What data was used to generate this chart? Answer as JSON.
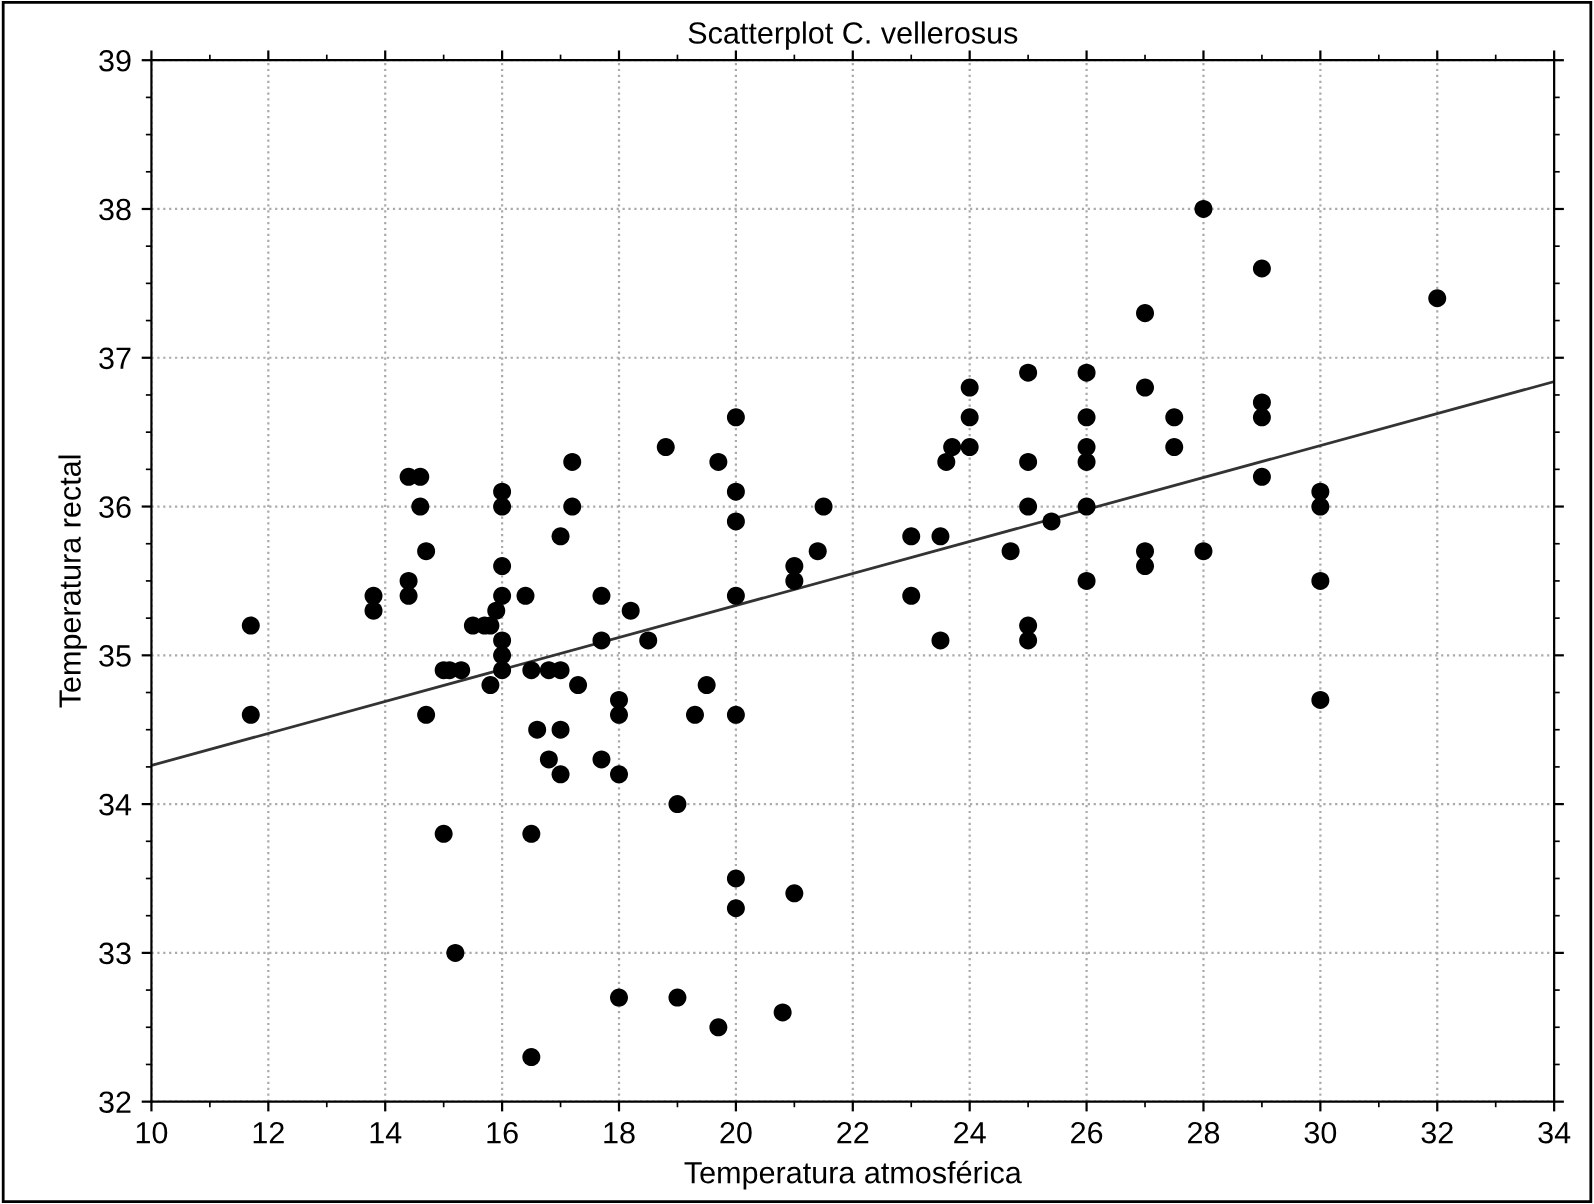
{
  "chart_data": {
    "type": "scatter",
    "title": "Scatterplot C. vellerosus",
    "xlabel": "Temperatura atmosférica",
    "ylabel": "Temperatura rectal",
    "xlim": [
      10,
      34
    ],
    "xticks": [
      10,
      12,
      14,
      16,
      18,
      20,
      22,
      24,
      26,
      28,
      30,
      32,
      34
    ],
    "ylim": [
      32,
      39
    ],
    "yticks": [
      32,
      33,
      34,
      35,
      36,
      37,
      38,
      39
    ],
    "grid": true,
    "series": [
      {
        "marker": "circle",
        "color": "#000000",
        "x": [
          11.7,
          11.7,
          13.8,
          13.8,
          14.4,
          14.6,
          14.6,
          14.4,
          14.4,
          14.7,
          14.7,
          15.0,
          15.1,
          15.3,
          15.0,
          15.2,
          15.5,
          15.7,
          15.8,
          15.9,
          15.8,
          16.0,
          16.0,
          16.0,
          16.0,
          16.0,
          16.0,
          16.0,
          16.4,
          16.5,
          16.5,
          16.5,
          16.6,
          16.8,
          16.8,
          17.0,
          17.0,
          17.0,
          17.0,
          17.2,
          17.2,
          17.3,
          17.7,
          17.7,
          17.7,
          18.0,
          18.0,
          18.0,
          18.0,
          18.2,
          18.5,
          18.8,
          19.0,
          19.0,
          19.3,
          19.5,
          19.7,
          19.7,
          20.0,
          20.0,
          20.0,
          20.0,
          20.0,
          20.0,
          20.0,
          20.8,
          21.0,
          21.0,
          21.0,
          21.4,
          21.5,
          23.0,
          23.0,
          23.5,
          23.5,
          23.6,
          23.7,
          24.0,
          24.0,
          24.0,
          24.7,
          25.0,
          25.0,
          25.0,
          25.0,
          25.0,
          25.4,
          26,
          26,
          26,
          26,
          26,
          26,
          27.0,
          27.0,
          27.0,
          27.0,
          27.5,
          27.5,
          28.0,
          28.0,
          29.0,
          29.0,
          29.0,
          29.0,
          30.0,
          30.0,
          30.0,
          30.0,
          32.0
        ],
        "values": [
          35.2,
          34.6,
          35.4,
          35.3,
          36.2,
          36.2,
          36.0,
          35.5,
          35.4,
          35.7,
          34.6,
          34.9,
          34.9,
          34.9,
          33.8,
          33.0,
          35.2,
          35.2,
          35.2,
          35.3,
          34.8,
          36.1,
          36.0,
          35.6,
          35.4,
          35.1,
          35.0,
          34.9,
          35.4,
          34.9,
          33.8,
          32.3,
          34.5,
          34.3,
          34.9,
          34.9,
          34.5,
          34.2,
          35.8,
          36.3,
          36.0,
          34.8,
          35.4,
          35.1,
          34.3,
          34.7,
          34.6,
          34.2,
          32.7,
          35.3,
          35.1,
          36.4,
          34.0,
          32.7,
          34.6,
          34.8,
          36.3,
          32.5,
          36.6,
          36.1,
          35.9,
          35.4,
          34.6,
          33.5,
          33.3,
          32.6,
          35.6,
          35.5,
          33.4,
          35.7,
          36.0,
          35.8,
          35.4,
          35.8,
          35.1,
          36.3,
          36.4,
          36.8,
          36.6,
          36.4,
          35.7,
          36.9,
          36.3,
          36.0,
          35.2,
          35.1,
          35.9,
          36.9,
          36.6,
          36.4,
          36.3,
          36.0,
          35.5,
          37.3,
          36.8,
          35.7,
          35.6,
          36.6,
          36.4,
          38.0,
          35.7,
          37.6,
          36.7,
          36.6,
          36.2,
          36.1,
          36.0,
          35.5,
          34.7,
          37.4
        ]
      },
      {
        "type": "line",
        "color": "#333333",
        "x": [
          10,
          34
        ],
        "values": [
          34.26,
          36.84
        ]
      }
    ]
  }
}
